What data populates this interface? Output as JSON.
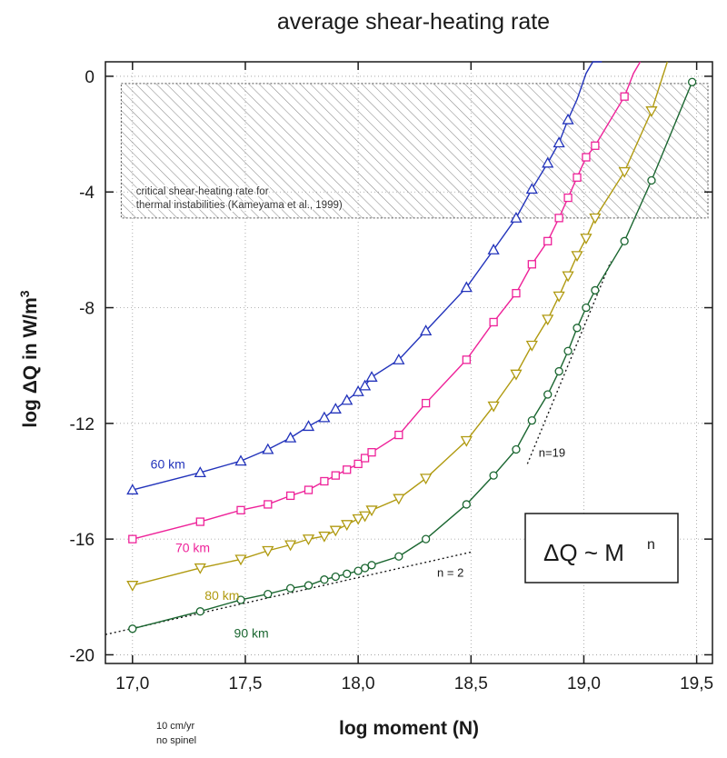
{
  "chart_data": {
    "type": "line",
    "title": "average shear-heating rate",
    "xlabel": "log moment (N)",
    "ylabel": "log ΔQ in W/m³",
    "xlim": [
      16.88,
      19.57
    ],
    "ylim": [
      -20.3,
      0.5
    ],
    "x_ticks": [
      17.0,
      17.5,
      18.0,
      18.5,
      19.0,
      19.5
    ],
    "x_tick_labels": [
      "17,0",
      "17,5",
      "18,0",
      "18,5",
      "19,0",
      "19,5"
    ],
    "y_ticks": [
      0,
      -4,
      -8,
      -12,
      -16,
      -20
    ],
    "y_tick_labels": [
      "0",
      "-4",
      "-8",
      "-12",
      "-16",
      "-20"
    ],
    "grid": true,
    "shaded_region": {
      "y_range": [
        -4.9,
        -0.25
      ],
      "x_range": [
        16.95,
        19.55
      ],
      "label_lines": [
        "critical shear-heating rate for",
        "thermal instabilities (Kameyama et al., 1999)"
      ]
    },
    "series": [
      {
        "name": "60 km",
        "color": "#2233bb",
        "marker": "triangle-up",
        "x": [
          17.0,
          17.3,
          17.48,
          17.6,
          17.7,
          17.78,
          17.85,
          17.9,
          17.95,
          18.0,
          18.03,
          18.06,
          18.18,
          18.3,
          18.48,
          18.6,
          18.7,
          18.77,
          18.84,
          18.89,
          18.93,
          18.97,
          19.01,
          19.04,
          19.08
        ],
        "y": [
          -14.3,
          -13.7,
          -13.3,
          -12.9,
          -12.5,
          -12.1,
          -11.8,
          -11.5,
          -11.2,
          -10.9,
          -10.7,
          -10.4,
          -9.8,
          -8.8,
          -7.3,
          -6.0,
          -4.9,
          -3.9,
          -3.0,
          -2.3,
          -1.5,
          -0.8,
          0.1,
          0.5,
          0.5
        ],
        "markers_shown": 21
      },
      {
        "name": "70 km",
        "color": "#ee2299",
        "marker": "square",
        "x": [
          17.0,
          17.3,
          17.48,
          17.6,
          17.7,
          17.78,
          17.85,
          17.9,
          17.95,
          18.0,
          18.03,
          18.06,
          18.18,
          18.3,
          18.48,
          18.6,
          18.7,
          18.77,
          18.84,
          18.89,
          18.93,
          18.97,
          19.01,
          19.05,
          19.18,
          19.22,
          19.25
        ],
        "y": [
          -16.0,
          -15.4,
          -15.0,
          -14.8,
          -14.5,
          -14.3,
          -14.0,
          -13.8,
          -13.6,
          -13.4,
          -13.2,
          -13.0,
          -12.4,
          -11.3,
          -9.8,
          -8.5,
          -7.5,
          -6.5,
          -5.7,
          -4.9,
          -4.2,
          -3.5,
          -2.8,
          -2.4,
          -0.7,
          0.1,
          0.5
        ]
      },
      {
        "name": "80 km",
        "color": "#b09a10",
        "marker": "triangle-down",
        "x": [
          17.0,
          17.3,
          17.48,
          17.6,
          17.7,
          17.78,
          17.85,
          17.9,
          17.95,
          18.0,
          18.03,
          18.06,
          18.18,
          18.3,
          18.48,
          18.6,
          18.7,
          18.77,
          18.84,
          18.89,
          18.93,
          18.97,
          19.01,
          19.05,
          19.18,
          19.3,
          19.37
        ],
        "y": [
          -17.6,
          -17.0,
          -16.7,
          -16.4,
          -16.2,
          -16.0,
          -15.9,
          -15.7,
          -15.5,
          -15.3,
          -15.2,
          -15.0,
          -14.6,
          -13.9,
          -12.6,
          -11.4,
          -10.3,
          -9.3,
          -8.4,
          -7.6,
          -6.9,
          -6.2,
          -5.6,
          -4.9,
          -3.3,
          -1.2,
          0.5
        ]
      },
      {
        "name": "90 km",
        "color": "#1a6630",
        "marker": "circle",
        "x": [
          17.0,
          17.3,
          17.48,
          17.6,
          17.7,
          17.78,
          17.85,
          17.9,
          17.95,
          18.0,
          18.03,
          18.06,
          18.18,
          18.3,
          18.48,
          18.6,
          18.7,
          18.77,
          18.84,
          18.89,
          18.93,
          18.97,
          19.01,
          19.05,
          19.18,
          19.3,
          19.48
        ],
        "y": [
          -19.1,
          -18.5,
          -18.1,
          -17.9,
          -17.7,
          -17.6,
          -17.4,
          -17.3,
          -17.2,
          -17.1,
          -17.0,
          -16.9,
          -16.6,
          -16.0,
          -14.8,
          -13.8,
          -12.9,
          -11.9,
          -11.0,
          -10.2,
          -9.5,
          -8.7,
          -8.0,
          -7.4,
          -5.7,
          -3.6,
          -0.2
        ]
      }
    ],
    "fit_lines": [
      {
        "label": "n = 2",
        "x": [
          16.88,
          18.5
        ],
        "y": [
          -19.3,
          -16.45
        ]
      },
      {
        "label": "n=19",
        "x": [
          18.75,
          19.12
        ],
        "y": [
          -13.4,
          -6.4
        ]
      }
    ],
    "legend_box": {
      "text": "ΔQ ~ M",
      "superscript": "n"
    },
    "footnotes": [
      "10 cm/yr",
      "no spinel"
    ]
  }
}
